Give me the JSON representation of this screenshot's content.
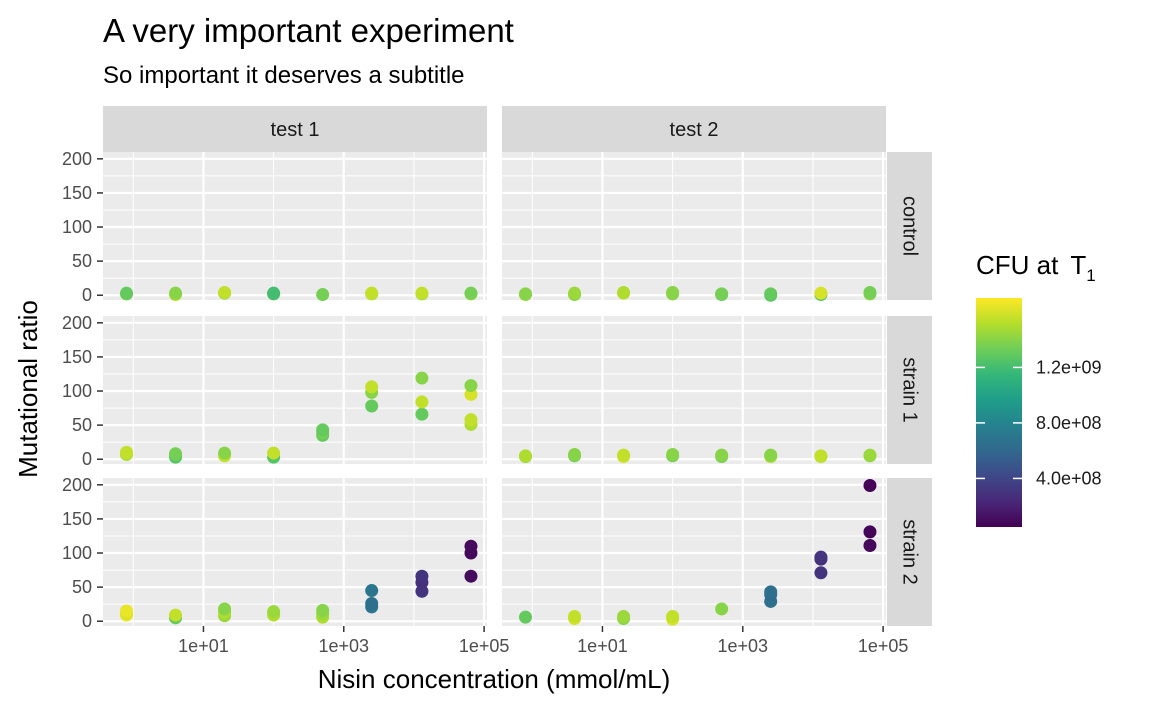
{
  "chart_data": {
    "type": "scatter",
    "title": "A very important experiment",
    "subtitle": "So important it deserves a subtitle",
    "xlabel": "Nisin concentration (mmol/mL)",
    "ylabel": "Mutational ratio",
    "x_scale": "log10",
    "xlim": [
      0.5,
      100000
    ],
    "ylim": [
      0,
      210
    ],
    "x_ticks": [
      10,
      1000,
      100000
    ],
    "x_tick_labels": [
      "1e+01",
      "1e+03",
      "1e+05"
    ],
    "y_ticks": [
      0,
      50,
      100,
      150,
      200
    ],
    "y_tick_labels": [
      "0",
      "50",
      "100",
      "150",
      "200"
    ],
    "grid": true,
    "facet_columns": [
      "test 1",
      "test 2"
    ],
    "facet_rows": [
      "control",
      "strain 1",
      "strain 2"
    ],
    "color_legend": {
      "title": "CFU at",
      "title_symbol": "T",
      "title_subscript": "1",
      "placement": "right",
      "colormap": "viridis",
      "range": [
        50000000,
        1700000000
      ],
      "ticks": [
        400000000,
        800000000,
        1200000000
      ],
      "tick_labels": [
        "4.0e+08",
        "8.0e+08",
        "1.2e+09"
      ]
    },
    "panels": [
      {
        "column": "test 1",
        "row": "control",
        "points": [
          {
            "x": 0.8,
            "y": 2,
            "cfu": 1350000000
          },
          {
            "x": 0.8,
            "y": 3,
            "cfu": 1300000000
          },
          {
            "x": 4,
            "y": 1,
            "cfu": 1500000000
          },
          {
            "x": 4,
            "y": 3,
            "cfu": 1400000000
          },
          {
            "x": 20,
            "y": 3,
            "cfu": 1400000000
          },
          {
            "x": 20,
            "y": 4,
            "cfu": 1550000000
          },
          {
            "x": 100,
            "y": 2,
            "cfu": 1250000000
          },
          {
            "x": 100,
            "y": 3,
            "cfu": 1200000000
          },
          {
            "x": 500,
            "y": 1,
            "cfu": 1350000000
          },
          {
            "x": 2500,
            "y": 2,
            "cfu": 1500000000
          },
          {
            "x": 2500,
            "y": 3,
            "cfu": 1550000000
          },
          {
            "x": 13000,
            "y": 2,
            "cfu": 1450000000
          },
          {
            "x": 13000,
            "y": 3,
            "cfu": 1550000000
          },
          {
            "x": 65000,
            "y": 2,
            "cfu": 1450000000
          },
          {
            "x": 65000,
            "y": 3,
            "cfu": 1350000000
          }
        ]
      },
      {
        "column": "test 2",
        "row": "control",
        "points": [
          {
            "x": 0.8,
            "y": 1,
            "cfu": 1450000000
          },
          {
            "x": 0.8,
            "y": 2,
            "cfu": 1400000000
          },
          {
            "x": 4,
            "y": 1,
            "cfu": 1400000000
          },
          {
            "x": 4,
            "y": 3,
            "cfu": 1450000000
          },
          {
            "x": 20,
            "y": 3,
            "cfu": 1550000000
          },
          {
            "x": 20,
            "y": 4,
            "cfu": 1500000000
          },
          {
            "x": 100,
            "y": 2,
            "cfu": 1400000000
          },
          {
            "x": 100,
            "y": 4,
            "cfu": 1400000000
          },
          {
            "x": 500,
            "y": 1,
            "cfu": 1300000000
          },
          {
            "x": 500,
            "y": 2,
            "cfu": 1350000000
          },
          {
            "x": 2500,
            "y": 0,
            "cfu": 1250000000
          },
          {
            "x": 2500,
            "y": 2,
            "cfu": 1300000000
          },
          {
            "x": 13000,
            "y": 1,
            "cfu": 1250000000
          },
          {
            "x": 13000,
            "y": 3,
            "cfu": 1600000000
          },
          {
            "x": 65000,
            "y": 2,
            "cfu": 1400000000
          },
          {
            "x": 65000,
            "y": 4,
            "cfu": 1350000000
          }
        ]
      },
      {
        "column": "test 1",
        "row": "strain 1",
        "points": [
          {
            "x": 0.8,
            "y": 7,
            "cfu": 1500000000
          },
          {
            "x": 0.8,
            "y": 10,
            "cfu": 1550000000
          },
          {
            "x": 4,
            "y": 3,
            "cfu": 1250000000
          },
          {
            "x": 4,
            "y": 6,
            "cfu": 1300000000
          },
          {
            "x": 4,
            "y": 8,
            "cfu": 1350000000
          },
          {
            "x": 20,
            "y": 5,
            "cfu": 1550000000
          },
          {
            "x": 20,
            "y": 9,
            "cfu": 1400000000
          },
          {
            "x": 100,
            "y": 3,
            "cfu": 1250000000
          },
          {
            "x": 100,
            "y": 9,
            "cfu": 1550000000
          },
          {
            "x": 500,
            "y": 35,
            "cfu": 1300000000
          },
          {
            "x": 500,
            "y": 39,
            "cfu": 1350000000
          },
          {
            "x": 500,
            "y": 43,
            "cfu": 1300000000
          },
          {
            "x": 2500,
            "y": 78,
            "cfu": 1300000000
          },
          {
            "x": 2500,
            "y": 98,
            "cfu": 1400000000
          },
          {
            "x": 2500,
            "y": 106,
            "cfu": 1550000000
          },
          {
            "x": 13000,
            "y": 66,
            "cfu": 1300000000
          },
          {
            "x": 13000,
            "y": 84,
            "cfu": 1550000000
          },
          {
            "x": 13000,
            "y": 119,
            "cfu": 1400000000
          },
          {
            "x": 65000,
            "y": 51,
            "cfu": 1500000000
          },
          {
            "x": 65000,
            "y": 58,
            "cfu": 1550000000
          },
          {
            "x": 65000,
            "y": 95,
            "cfu": 1600000000
          },
          {
            "x": 65000,
            "y": 108,
            "cfu": 1400000000
          }
        ]
      },
      {
        "column": "test 2",
        "row": "strain 1",
        "points": [
          {
            "x": 0.8,
            "y": 4,
            "cfu": 1450000000
          },
          {
            "x": 0.8,
            "y": 5,
            "cfu": 1500000000
          },
          {
            "x": 4,
            "y": 5,
            "cfu": 1350000000
          },
          {
            "x": 4,
            "y": 7,
            "cfu": 1400000000
          },
          {
            "x": 20,
            "y": 4,
            "cfu": 1600000000
          },
          {
            "x": 20,
            "y": 6,
            "cfu": 1550000000
          },
          {
            "x": 100,
            "y": 5,
            "cfu": 1350000000
          },
          {
            "x": 100,
            "y": 7,
            "cfu": 1400000000
          },
          {
            "x": 500,
            "y": 4,
            "cfu": 1350000000
          },
          {
            "x": 500,
            "y": 6,
            "cfu": 1400000000
          },
          {
            "x": 2500,
            "y": 4,
            "cfu": 1500000000
          },
          {
            "x": 2500,
            "y": 6,
            "cfu": 1400000000
          },
          {
            "x": 13000,
            "y": 4,
            "cfu": 1500000000
          },
          {
            "x": 13000,
            "y": 5,
            "cfu": 1550000000
          },
          {
            "x": 65000,
            "y": 5,
            "cfu": 1400000000
          },
          {
            "x": 65000,
            "y": 6,
            "cfu": 1450000000
          }
        ]
      },
      {
        "column": "test 1",
        "row": "strain 2",
        "points": [
          {
            "x": 0.8,
            "y": 9,
            "cfu": 1650000000
          },
          {
            "x": 0.8,
            "y": 12,
            "cfu": 1600000000
          },
          {
            "x": 0.8,
            "y": 15,
            "cfu": 1650000000
          },
          {
            "x": 4,
            "y": 5,
            "cfu": 1300000000
          },
          {
            "x": 4,
            "y": 9,
            "cfu": 1550000000
          },
          {
            "x": 20,
            "y": 8,
            "cfu": 1450000000
          },
          {
            "x": 20,
            "y": 13,
            "cfu": 1500000000
          },
          {
            "x": 20,
            "y": 18,
            "cfu": 1400000000
          },
          {
            "x": 100,
            "y": 9,
            "cfu": 1500000000
          },
          {
            "x": 100,
            "y": 14,
            "cfu": 1450000000
          },
          {
            "x": 500,
            "y": 6,
            "cfu": 1500000000
          },
          {
            "x": 500,
            "y": 11,
            "cfu": 1450000000
          },
          {
            "x": 500,
            "y": 16,
            "cfu": 1400000000
          },
          {
            "x": 2500,
            "y": 21,
            "cfu": 700000000
          },
          {
            "x": 2500,
            "y": 26,
            "cfu": 650000000
          },
          {
            "x": 2500,
            "y": 45,
            "cfu": 700000000
          },
          {
            "x": 13000,
            "y": 44,
            "cfu": 300000000
          },
          {
            "x": 13000,
            "y": 57,
            "cfu": 280000000
          },
          {
            "x": 13000,
            "y": 66,
            "cfu": 300000000
          },
          {
            "x": 65000,
            "y": 66,
            "cfu": 100000000
          },
          {
            "x": 65000,
            "y": 100,
            "cfu": 80000000
          },
          {
            "x": 65000,
            "y": 110,
            "cfu": 90000000
          }
        ]
      },
      {
        "column": "test 2",
        "row": "strain 2",
        "points": [
          {
            "x": 0.8,
            "y": 6,
            "cfu": 1300000000
          },
          {
            "x": 4,
            "y": 4,
            "cfu": 1600000000
          },
          {
            "x": 4,
            "y": 7,
            "cfu": 1550000000
          },
          {
            "x": 20,
            "y": 4,
            "cfu": 1400000000
          },
          {
            "x": 20,
            "y": 7,
            "cfu": 1450000000
          },
          {
            "x": 100,
            "y": 3,
            "cfu": 1600000000
          },
          {
            "x": 100,
            "y": 7,
            "cfu": 1550000000
          },
          {
            "x": 500,
            "y": 18,
            "cfu": 1400000000
          },
          {
            "x": 2500,
            "y": 29,
            "cfu": 650000000
          },
          {
            "x": 2500,
            "y": 39,
            "cfu": 620000000
          },
          {
            "x": 2500,
            "y": 43,
            "cfu": 650000000
          },
          {
            "x": 13000,
            "y": 71,
            "cfu": 300000000
          },
          {
            "x": 13000,
            "y": 91,
            "cfu": 280000000
          },
          {
            "x": 13000,
            "y": 94,
            "cfu": 300000000
          },
          {
            "x": 65000,
            "y": 111,
            "cfu": 80000000
          },
          {
            "x": 65000,
            "y": 131,
            "cfu": 70000000
          },
          {
            "x": 65000,
            "y": 199,
            "cfu": 60000000
          }
        ]
      }
    ]
  }
}
